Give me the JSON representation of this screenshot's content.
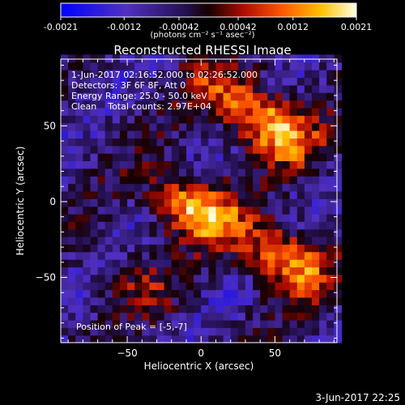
{
  "colorbar": {
    "ticks": [
      "-0.0021",
      "-0.0012",
      "-0.00042",
      "0.00042",
      "0.0012",
      "0.0021"
    ],
    "tick_values": [
      -0.0021,
      -0.0012,
      -0.00042,
      0.00042,
      0.0012,
      0.0021
    ],
    "range": [
      -0.0021,
      0.0021
    ],
    "units_label": "(photons cm⁻² s⁻¹ asec⁻²)",
    "colors": [
      "#0000ff",
      "#5a32c8",
      "#2a1060",
      "#200000",
      "#c01000",
      "#ff6000",
      "#ffc000",
      "#ffffe0"
    ]
  },
  "chart_data": {
    "type": "heatmap",
    "title": "Reconstructed RHESSI Image",
    "xlabel": "Heliocentric X (arcsec)",
    "ylabel": "Heliocentric Y (arcsec)",
    "xlim": [
      -95,
      92
    ],
    "ylim": [
      -93,
      94
    ],
    "xticks": [
      -50,
      0,
      50
    ],
    "yticks": [
      -50,
      0,
      50
    ],
    "annotations": [
      "1-Jun-2017 02:16:52.000 to 02:26:52.000",
      "Detectors: 3F 6F 8F, Att 0",
      "Energy Range: 25.0 - 50.0 keV",
      "Clean",
      "Total counts: 2.97E+04"
    ],
    "peak_label": "Position of Peak = [-5,-7]",
    "peak": [
      -5,
      -7
    ],
    "sources": [
      {
        "x": -5,
        "y": -7,
        "intensity": 0.0021
      },
      {
        "x": 48,
        "y": 45,
        "intensity": 0.0019
      },
      {
        "x": 55,
        "y": -40,
        "intensity": 0.0018
      },
      {
        "x": 15,
        "y": 70,
        "intensity": 0.0009
      },
      {
        "x": -45,
        "y": -55,
        "intensity": 0.0006
      }
    ]
  },
  "footer": {
    "timestamp": "3-Jun-2017 22:25"
  }
}
